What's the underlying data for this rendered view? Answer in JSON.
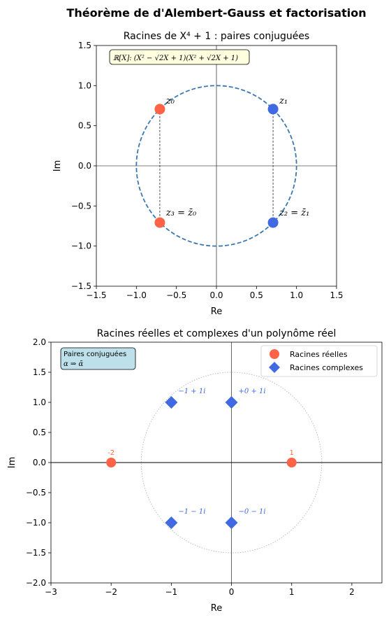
{
  "suptitle": "Théorème de d'Alembert-Gauss et factorisation",
  "chart_data": [
    {
      "type": "scatter",
      "title": "Racines de X⁴ + 1 : paires conjuguées",
      "xlabel": "Re",
      "ylabel": "Im",
      "xlim": [
        -1.5,
        1.5
      ],
      "ylim": [
        -1.5,
        1.5
      ],
      "xticks": [
        "−1.5",
        "−1.0",
        "−0.5",
        "0.0",
        "0.5",
        "1.0",
        "1.5"
      ],
      "yticks": [
        "−1.5",
        "−1.0",
        "−0.5",
        "0.0",
        "0.5",
        "1.0",
        "1.5"
      ],
      "grid": false,
      "unit_circle": {
        "radius": 1,
        "style": "dashed",
        "color": "#3b78b0"
      },
      "annotation_box": "ℝ[X]: (X² − √2X + 1)(X² + √2X + 1)",
      "points": [
        {
          "x": -0.7071,
          "y": 0.7071,
          "label": "z₀",
          "color": "#ff6347"
        },
        {
          "x": 0.7071,
          "y": 0.7071,
          "label": "z₁",
          "color": "#4169e1"
        },
        {
          "x": 0.7071,
          "y": -0.7071,
          "label": "z₂ = z̄₁",
          "color": "#4169e1"
        },
        {
          "x": -0.7071,
          "y": -0.7071,
          "label": "z₃ = z̄₀",
          "color": "#ff6347"
        }
      ],
      "conjugate_links": [
        [
          0,
          3
        ],
        [
          1,
          2
        ]
      ]
    },
    {
      "type": "scatter",
      "title": "Racines réelles et complexes d'un polynôme réel",
      "xlabel": "Re",
      "ylabel": "Im",
      "xlim": [
        -3,
        2.5
      ],
      "ylim": [
        -2,
        2
      ],
      "xticks": [
        "−3",
        "−2",
        "−1",
        "0",
        "1",
        "2"
      ],
      "yticks": [
        "−2.0",
        "−1.5",
        "−1.0",
        "−0.5",
        "0.0",
        "0.5",
        "1.0",
        "1.5",
        "2.0"
      ],
      "grid": false,
      "reference_circle": {
        "radius": 1.5,
        "style": "dotted",
        "color": "#bbbbbb"
      },
      "legend_position": "top-right",
      "legend": [
        {
          "label": "Racines réelles",
          "marker": "circle",
          "color": "#ff6347"
        },
        {
          "label": "Racines complexes",
          "marker": "diamond",
          "color": "#4169e1"
        }
      ],
      "info_box": [
        "Paires conjuguées",
        "α ⇒ ᾱ"
      ],
      "series": [
        {
          "name": "Racines réelles",
          "color": "#ff6347",
          "marker": "circle",
          "points": [
            {
              "x": -2,
              "y": 0,
              "label": "-2"
            },
            {
              "x": 1,
              "y": 0,
              "label": "1"
            }
          ]
        },
        {
          "name": "Racines complexes",
          "color": "#4169e1",
          "marker": "diamond",
          "points": [
            {
              "x": -1,
              "y": 1,
              "label": "−1 + 1i"
            },
            {
              "x": 0,
              "y": 1,
              "label": "+0 + 1i"
            },
            {
              "x": -1,
              "y": -1,
              "label": "−1 − 1i"
            },
            {
              "x": 0,
              "y": -1,
              "label": "−0 − 1i"
            }
          ]
        }
      ]
    }
  ]
}
